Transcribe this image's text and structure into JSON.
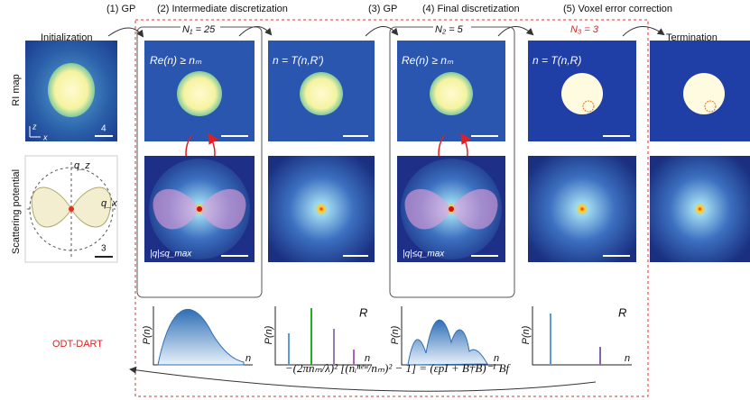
{
  "steps": [
    "(1) GP",
    "(2) Intermediate discretization",
    "(3) GP",
    "(4) Final discretization",
    "(5) Voxel error correction"
  ],
  "stages": {
    "initialization": "Initialization",
    "termination": "Termination"
  },
  "iterations": [
    "N₁ = 25",
    "N₂ = 5",
    "N₃ = 3"
  ],
  "panel_labels": [
    "Re(n) ≥ nₘ",
    "n = T(n,R′)",
    "Re(n) ≥ nₘ",
    "n = T(n,R)"
  ],
  "row_labels": [
    "RI map",
    "Scattering potential"
  ],
  "axis_labels": {
    "z": "z",
    "x": "x",
    "qz": "q_z",
    "qx": "q_x"
  },
  "scale_bars": [
    "4",
    "3"
  ],
  "aperture_label": "|q|≤q_max",
  "histogram_labels": {
    "y": "P(n)",
    "x": "n",
    "r": "R"
  },
  "method": "ODT-DART",
  "equation": "−(2πnₘ/λ)² [(nᵢⁿᵉʷ/nₘ)² − 1] = (εpI + B†B)⁻¹ Bf"
}
